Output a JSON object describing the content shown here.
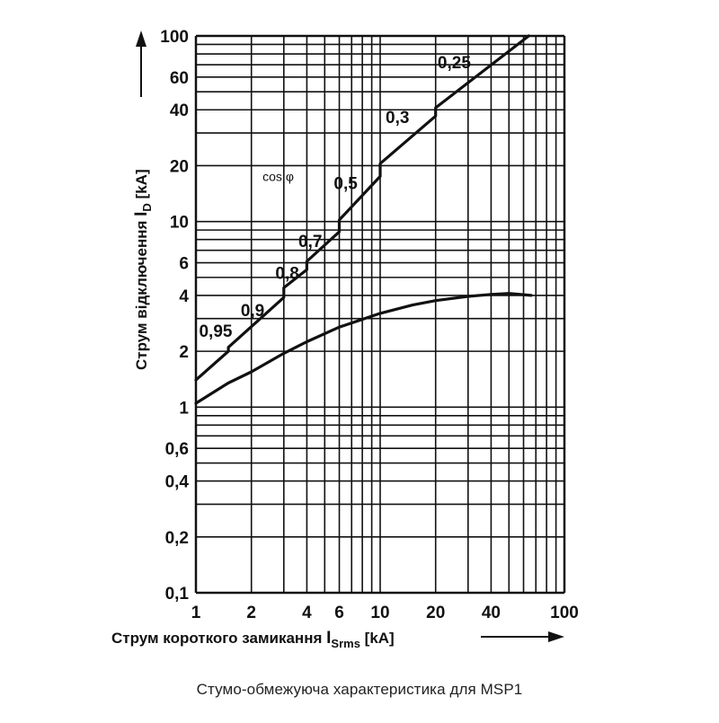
{
  "chart_data": {
    "type": "line",
    "x_scale": "log",
    "y_scale": "log",
    "xlim": [
      1,
      100
    ],
    "ylim": [
      0.1,
      100
    ],
    "grid": true,
    "x_ticks": [
      1,
      2,
      3,
      4,
      5,
      6,
      7,
      8,
      9,
      10,
      20,
      30,
      40,
      50,
      60,
      70,
      80,
      90,
      100
    ],
    "y_ticks": [
      0.1,
      0.2,
      0.3,
      0.4,
      0.5,
      0.6,
      0.7,
      0.8,
      0.9,
      1,
      2,
      3,
      4,
      5,
      6,
      7,
      8,
      9,
      10,
      20,
      30,
      40,
      50,
      60,
      70,
      80,
      90,
      100
    ],
    "x_tick_labels": [
      {
        "value": 1,
        "label": "1"
      },
      {
        "value": 2,
        "label": "2"
      },
      {
        "value": 4,
        "label": "4"
      },
      {
        "value": 6,
        "label": "6"
      },
      {
        "value": 10,
        "label": "10"
      },
      {
        "value": 20,
        "label": "20"
      },
      {
        "value": 40,
        "label": "40"
      },
      {
        "value": 100,
        "label": "100"
      }
    ],
    "y_tick_labels": [
      {
        "value": 100,
        "label": "100"
      },
      {
        "value": 60,
        "label": "60"
      },
      {
        "value": 40,
        "label": "40"
      },
      {
        "value": 20,
        "label": "20"
      },
      {
        "value": 10,
        "label": "10"
      },
      {
        "value": 6,
        "label": "6"
      },
      {
        "value": 4,
        "label": "4"
      },
      {
        "value": 2,
        "label": "2"
      },
      {
        "value": 1,
        "label": "1"
      },
      {
        "value": 0.6,
        "label": "0,6"
      },
      {
        "value": 0.4,
        "label": "0,4"
      },
      {
        "value": 0.2,
        "label": "0,2"
      },
      {
        "value": 0.1,
        "label": "0,1"
      }
    ],
    "xlabel": {
      "main": "Струм короткого замикання",
      "symbol": "I",
      "sub": "Srms",
      "unit": "[kA]"
    },
    "ylabel": {
      "main": "Струм відключення",
      "symbol": "I",
      "sub": "D",
      "unit": "[kA]"
    },
    "series": [
      {
        "x": [
          1,
          1.5,
          1.5,
          3,
          3,
          4,
          4,
          6,
          6,
          10,
          10,
          20,
          20,
          64
        ],
        "y": [
          1.4,
          2.0,
          2.1,
          3.9,
          4.4,
          5.5,
          6.1,
          8.8,
          10.2,
          17.5,
          20.5,
          37.0,
          41.0,
          100
        ]
      },
      {
        "x": [
          1,
          1.5,
          2,
          3,
          4,
          6,
          10,
          15,
          20,
          30,
          40,
          50,
          66
        ],
        "y": [
          1.05,
          1.35,
          1.55,
          1.95,
          2.25,
          2.7,
          3.2,
          3.55,
          3.75,
          3.95,
          4.05,
          4.1,
          4.0
        ]
      }
    ],
    "annotations": [
      {
        "text": "cos φ",
        "x": 2.3,
        "y": 16.5
      },
      {
        "text": "0,95",
        "x": 1.04,
        "y": 2.4
      },
      {
        "text": "0,9",
        "x": 1.75,
        "y": 3.1
      },
      {
        "text": "0,8",
        "x": 2.7,
        "y": 4.9
      },
      {
        "text": "0,7",
        "x": 3.6,
        "y": 7.3
      },
      {
        "text": "0,5",
        "x": 5.6,
        "y": 15.0
      },
      {
        "text": "0,3",
        "x": 10.7,
        "y": 34.0
      },
      {
        "text": "0,25",
        "x": 20.5,
        "y": 67.0
      }
    ]
  },
  "caption": "Стумо-обмежуюча характеристика для MSP1"
}
